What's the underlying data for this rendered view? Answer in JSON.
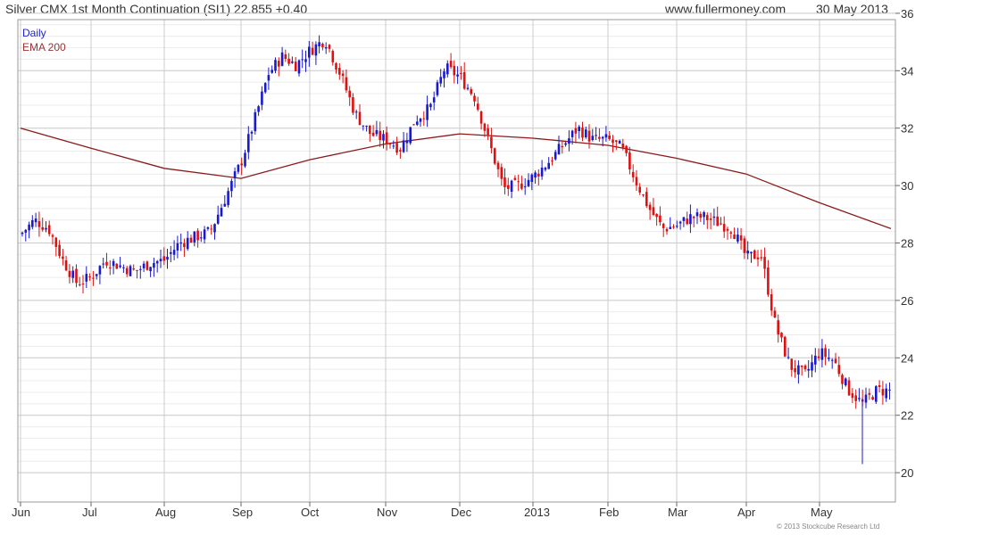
{
  "header": {
    "title": "Silver CMX 1st Month Continuation (SI1) 22.855 +0.40",
    "website": "www.fullermoney.com",
    "date": "30 May 2013"
  },
  "legend": {
    "daily": "Daily",
    "ema": "EMA 200"
  },
  "footer": {
    "copyright": "© 2013 Stockcube Research Ltd"
  },
  "colors": {
    "up": "#1a1acc",
    "down": "#dd1111",
    "ema": "#8b1a1a",
    "grid": "#cccccc",
    "grid_minor": "#ececec"
  },
  "chart_data": {
    "type": "candlestick",
    "ylim": [
      19.5,
      36.3
    ],
    "y_ticks": [
      20,
      22,
      24,
      26,
      28,
      30,
      32,
      34,
      36
    ],
    "x_tick_labels": [
      "Jun",
      "Jul",
      "Aug",
      "Sep",
      "Oct",
      "Nov",
      "Dec",
      "2013",
      "Feb",
      "Mar",
      "Apr",
      "May"
    ],
    "grid": true,
    "y_axis_side": "right",
    "series": [
      {
        "name": "Daily",
        "type": "ohlc-close-path",
        "monthly_close_anchors": [
          {
            "month": "Jun",
            "values": [
              28.3,
              28.8,
              28.5,
              27.4,
              26.6
            ]
          },
          {
            "month": "Jul",
            "values": [
              26.8,
              27.4,
              27.2,
              27.0,
              27.3
            ]
          },
          {
            "month": "Aug",
            "values": [
              27.4,
              28.0,
              28.2,
              28.4,
              29.6
            ]
          },
          {
            "month": "Sep",
            "values": [
              30.8,
              32.3,
              33.9,
              34.5,
              34.2
            ]
          },
          {
            "month": "Oct",
            "values": [
              34.7,
              35.1,
              33.9,
              32.5,
              31.8
            ]
          },
          {
            "month": "Nov",
            "values": [
              31.6,
              31.3,
              32.3,
              32.7,
              34.1
            ]
          },
          {
            "month": "Dec",
            "values": [
              33.8,
              33.1,
              31.5,
              29.9,
              30.0
            ]
          },
          {
            "month": "2013",
            "values": [
              30.3,
              30.8,
              31.4,
              32.0,
              31.6
            ]
          },
          {
            "month": "Feb",
            "values": [
              31.6,
              31.3,
              30.2,
              29.2,
              28.5
            ]
          },
          {
            "month": "Mar",
            "values": [
              28.6,
              28.9,
              28.9,
              28.7,
              28.5
            ]
          },
          {
            "month": "Apr",
            "values": [
              27.5,
              27.6,
              25.1,
              23.7,
              23.4
            ]
          },
          {
            "month": "May",
            "values": [
              24.2,
              23.9,
              22.9,
              22.4,
              22.86
            ]
          }
        ]
      },
      {
        "name": "EMA 200",
        "type": "line",
        "x": [
          "Jun",
          "Jul",
          "Aug",
          "Sep",
          "Oct",
          "Nov",
          "Dec",
          "2013",
          "Feb",
          "Mar",
          "Apr",
          "May",
          "May 30"
        ],
        "values": [
          32.0,
          31.3,
          30.6,
          30.25,
          30.9,
          31.45,
          31.8,
          31.65,
          31.4,
          30.95,
          30.4,
          29.4,
          28.5
        ]
      }
    ],
    "last_close": 22.855,
    "change": 0.4
  }
}
